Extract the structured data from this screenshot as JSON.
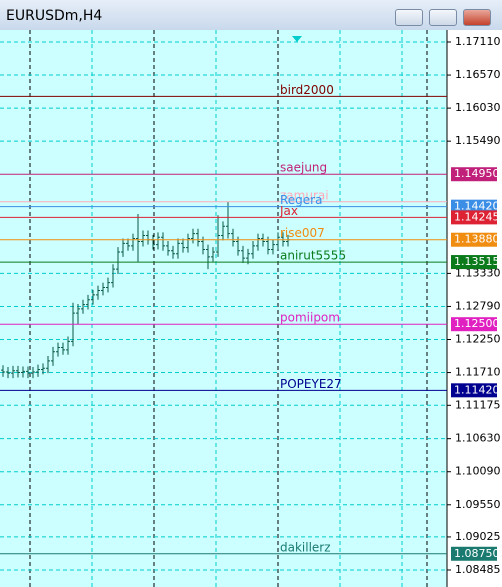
{
  "window_title": "EURUSDm,H4",
  "chart_data": {
    "type": "ohlc",
    "color": "#0a5a46",
    "ylim": [
      1.08207,
      1.17306
    ],
    "yticks": [
      {
        "value": 1.1711,
        "label": "1.17110"
      },
      {
        "value": 1.1657,
        "label": "1.16570"
      },
      {
        "value": 1.1603,
        "label": "1.16030"
      },
      {
        "value": 1.1549,
        "label": "1.15490"
      },
      {
        "value": 1.1333,
        "label": "1.13330"
      },
      {
        "value": 1.1279,
        "label": "1.12790"
      },
      {
        "value": 1.1225,
        "label": "1.12250"
      },
      {
        "value": 1.1171,
        "label": "1.11710"
      },
      {
        "value": 1.11175,
        "label": "1.11175"
      },
      {
        "value": 1.1063,
        "label": "1.10630"
      },
      {
        "value": 1.1009,
        "label": "1.10090"
      },
      {
        "value": 1.0955,
        "label": "1.09550"
      },
      {
        "value": 1.09025,
        "label": "1.09025"
      },
      {
        "value": 1.08485,
        "label": "1.08485"
      }
    ],
    "grid": true,
    "open": [
      1.1175,
      1.1172,
      1.117,
      1.1174,
      1.1171,
      1.1173,
      1.117,
      1.1172,
      1.1176,
      1.1178,
      1.119,
      1.1205,
      1.1212,
      1.1208,
      1.1222,
      1.1268,
      1.1275,
      1.1282,
      1.129,
      1.1298,
      1.1305,
      1.131,
      1.1318,
      1.134,
      1.1368,
      1.1382,
      1.1378,
      1.139,
      1.1385,
      1.1395,
      1.1388,
      1.138,
      1.1392,
      1.1378,
      1.137,
      1.1365,
      1.1382,
      1.1375,
      1.139,
      1.1398,
      1.1385,
      1.1372,
      1.136,
      1.1368,
      1.1395,
      1.141,
      1.1398,
      1.1385,
      1.137,
      1.1358,
      1.1365,
      1.1378,
      1.139,
      1.1385,
      1.1372,
      1.138,
      1.1392,
      1.1385
    ],
    "high": [
      1.1183,
      1.118,
      1.1182,
      1.1182,
      1.1181,
      1.1181,
      1.118,
      1.1184,
      1.1186,
      1.1198,
      1.1213,
      1.122,
      1.122,
      1.123,
      1.1285,
      1.1283,
      1.129,
      1.1298,
      1.1306,
      1.1313,
      1.1318,
      1.1326,
      1.1348,
      1.1376,
      1.139,
      1.139,
      1.1398,
      1.143,
      1.1403,
      1.1403,
      1.1396,
      1.14,
      1.14,
      1.1386,
      1.1378,
      1.139,
      1.139,
      1.1398,
      1.1406,
      1.1406,
      1.1393,
      1.138,
      1.1376,
      1.1428,
      1.1418,
      1.145,
      1.1406,
      1.1393,
      1.1378,
      1.1373,
      1.1386,
      1.1398,
      1.1398,
      1.1393,
      1.1388,
      1.14,
      1.14,
      1.1396
    ],
    "low": [
      1.1164,
      1.1162,
      1.1162,
      1.1163,
      1.1163,
      1.1162,
      1.1162,
      1.1164,
      1.1168,
      1.117,
      1.1182,
      1.1197,
      1.12,
      1.12,
      1.1214,
      1.125,
      1.1267,
      1.1274,
      1.1282,
      1.129,
      1.1297,
      1.1302,
      1.131,
      1.1332,
      1.136,
      1.137,
      1.137,
      1.1352,
      1.1377,
      1.138,
      1.1372,
      1.1372,
      1.137,
      1.1362,
      1.1357,
      1.1357,
      1.1367,
      1.1367,
      1.1382,
      1.1377,
      1.1364,
      1.134,
      1.1352,
      1.136,
      1.1387,
      1.139,
      1.1377,
      1.1362,
      1.135,
      1.1348,
      1.1357,
      1.137,
      1.1377,
      1.1364,
      1.1364,
      1.1372,
      1.1377,
      1.1377
    ],
    "close": [
      1.1172,
      1.117,
      1.1174,
      1.1171,
      1.1173,
      1.117,
      1.1172,
      1.1176,
      1.1178,
      1.119,
      1.1205,
      1.1212,
      1.1208,
      1.1222,
      1.1268,
      1.1275,
      1.1282,
      1.129,
      1.1298,
      1.1305,
      1.131,
      1.1318,
      1.134,
      1.1368,
      1.1382,
      1.1378,
      1.139,
      1.1385,
      1.1395,
      1.1388,
      1.138,
      1.1392,
      1.1378,
      1.137,
      1.1365,
      1.1382,
      1.1375,
      1.139,
      1.1398,
      1.1385,
      1.1372,
      1.136,
      1.1368,
      1.1395,
      1.141,
      1.1398,
      1.1385,
      1.137,
      1.1358,
      1.1365,
      1.1378,
      1.139,
      1.1385,
      1.1372,
      1.138,
      1.1392,
      1.1385,
      1.1388
    ],
    "levels": [
      {
        "name": "bird2000",
        "value": 1.16222,
        "color": "#800000"
      },
      {
        "name": "saejung",
        "value": 1.1495,
        "label": "1.14950",
        "color": "#c0207a"
      },
      {
        "name": "zamurai",
        "value": 1.145,
        "color": "#ffaabb"
      },
      {
        "name": "Regera",
        "value": 1.1442,
        "label": "1.14420",
        "color": "#3a8ee6"
      },
      {
        "name": "Jax",
        "value": 1.14245,
        "label": "1.14245",
        "color": "#dd2233"
      },
      {
        "name": "rise007",
        "value": 1.1388,
        "label": "1.13880",
        "color": "#f08c10"
      },
      {
        "name": "anirut5555",
        "value": 1.13515,
        "label": "1.13515",
        "color": "#0a7a1a"
      },
      {
        "name": "pomiipom",
        "value": 1.125,
        "label": "1.12500",
        "color": "#e020c0"
      },
      {
        "name": "POPEYE27",
        "value": 1.1142,
        "label": "1.11420",
        "color": "#000090"
      },
      {
        "name": "dakillerz",
        "value": 1.0875,
        "label": "1.08750",
        "color": "#1a7a70"
      }
    ]
  }
}
